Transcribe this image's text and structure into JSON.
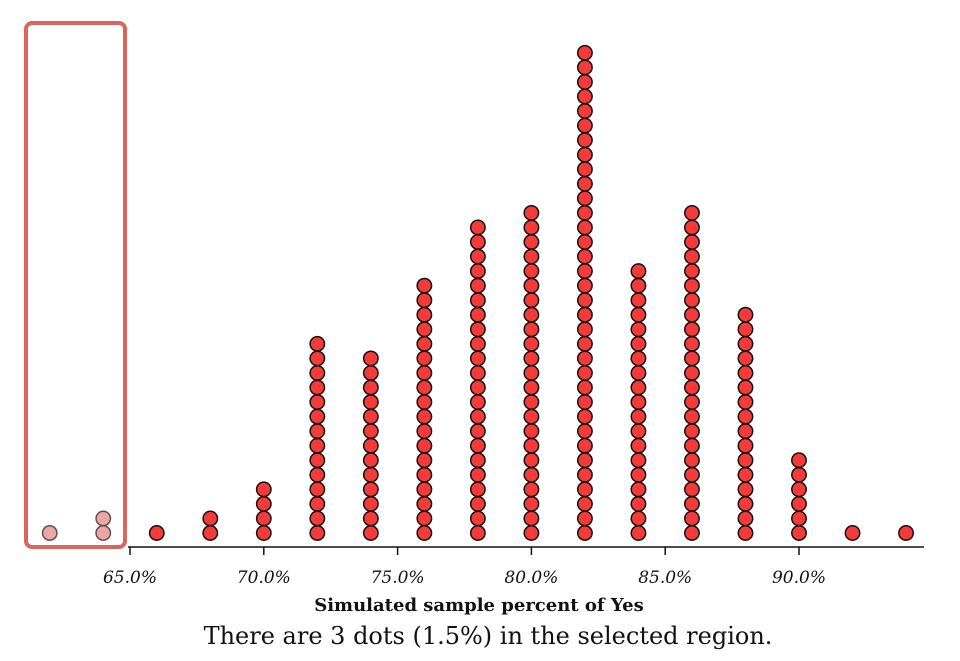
{
  "chart_data": {
    "type": "dotplot",
    "xlabel": "Simulated sample percent of Yes",
    "xlim": [
      61,
      94.8
    ],
    "x_ticks": [
      65,
      70,
      75,
      80,
      85,
      90
    ],
    "x_tick_labels": [
      "65.0%",
      "70.0%",
      "75.0%",
      "80.0%",
      "85.0%",
      "90.0%"
    ],
    "columns": [
      {
        "x": 62,
        "count": 1
      },
      {
        "x": 64,
        "count": 2
      },
      {
        "x": 66,
        "count": 1
      },
      {
        "x": 68,
        "count": 2
      },
      {
        "x": 70,
        "count": 4
      },
      {
        "x": 72,
        "count": 14
      },
      {
        "x": 74,
        "count": 13
      },
      {
        "x": 76,
        "count": 18
      },
      {
        "x": 78,
        "count": 22
      },
      {
        "x": 80,
        "count": 23
      },
      {
        "x": 82,
        "count": 34
      },
      {
        "x": 84,
        "count": 19
      },
      {
        "x": 86,
        "count": 23
      },
      {
        "x": 88,
        "count": 16
      },
      {
        "x": 90,
        "count": 6
      },
      {
        "x": 92,
        "count": 1
      },
      {
        "x": 94,
        "count": 1
      }
    ],
    "selected_region": {
      "x_min": 61,
      "x_max": 64.9
    },
    "colors": {
      "dot": "#f53a3a",
      "dot_selected": "#f0a4a4",
      "selection_box": "#d9665a"
    }
  },
  "summary_text": "There are 3 dots (1.5%) in the selected region."
}
